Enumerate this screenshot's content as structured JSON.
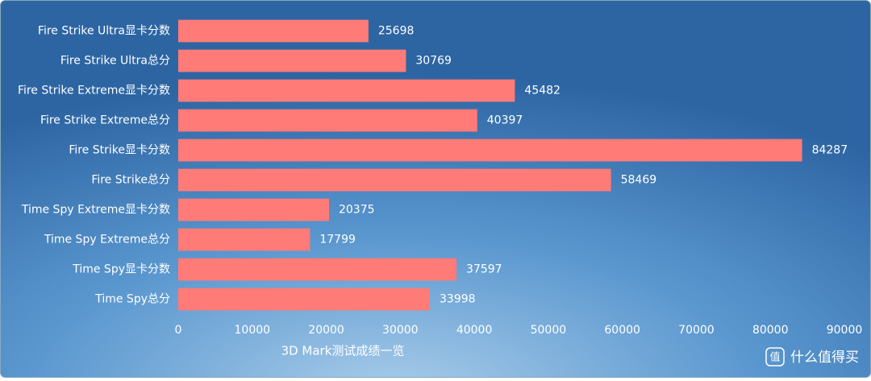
{
  "chart_data": {
    "type": "hbar",
    "title": "3D Mark测试成绩一览",
    "categories": [
      "Fire Strike Ultra显卡分数",
      "Fire Strike Ultra总分",
      "Fire Strike Extreme显卡分数",
      "Fire Strike Extreme总分",
      "Fire Strike显卡分数",
      "Fire Strike总分",
      "Time Spy  Extreme显卡分数",
      "Time Spy  Extreme总分",
      "Time Spy显卡分数",
      "Time Spy总分"
    ],
    "values": [
      25698,
      30769,
      45482,
      40397,
      84287,
      58469,
      20375,
      17799,
      37597,
      33998
    ],
    "color": "#ff7b78",
    "xlim": [
      0,
      90000
    ],
    "xticks": [
      0,
      10000,
      20000,
      30000,
      40000,
      50000,
      60000,
      70000,
      80000,
      90000
    ],
    "grid": false
  },
  "watermark": {
    "icon": "值",
    "text": "什么值得买"
  }
}
